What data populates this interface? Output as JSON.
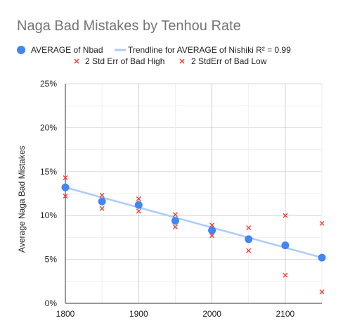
{
  "chart_data": {
    "type": "scatter",
    "title": "Naga Bad Mistakes by Tenhou Rate",
    "xlabel": "",
    "ylabel": "Average Naga Bad Mistakes",
    "xlim": [
      1800,
      2150
    ],
    "ylim": [
      0,
      25
    ],
    "x_ticks": [
      1800,
      1900,
      2000,
      2100
    ],
    "x_tick_labels": [
      "1800",
      "1900",
      "2000",
      "2100"
    ],
    "y_ticks": [
      0,
      5,
      10,
      15,
      20,
      25
    ],
    "y_tick_labels": [
      "0%",
      "5%",
      "10%",
      "15%",
      "20%",
      "25%"
    ],
    "grid": true,
    "legend_position": "top",
    "series": [
      {
        "name": "AVERAGE of Nbad",
        "marker": "circle",
        "color": "#4285f4",
        "x": [
          1800,
          1850,
          1900,
          1950,
          2000,
          2050,
          2100,
          2150
        ],
        "values": [
          13.2,
          11.6,
          11.2,
          9.4,
          8.3,
          7.3,
          6.6,
          5.2
        ]
      },
      {
        "name": "Trendline for AVERAGE of Nishiki R² = 0.99",
        "type": "trendline",
        "color": "#aecbfa",
        "x": [
          1800,
          2150
        ],
        "values": [
          13.2,
          5.2
        ]
      },
      {
        "name": "2 Std Err of Bad High",
        "marker": "x",
        "color": "#ea4335",
        "x": [
          1800,
          1850,
          1900,
          1950,
          2000,
          2050,
          2100,
          2150
        ],
        "values": [
          14.3,
          12.3,
          11.9,
          10.1,
          8.9,
          8.6,
          10.0,
          9.1
        ]
      },
      {
        "name": "2 StdErr of Bad Low",
        "marker": "x",
        "color": "#ea4335",
        "x": [
          1800,
          1850,
          1900,
          1950,
          2000,
          2050,
          2100,
          2150
        ],
        "values": [
          12.2,
          10.8,
          10.5,
          8.7,
          7.7,
          6.0,
          3.2,
          1.3
        ]
      }
    ]
  }
}
